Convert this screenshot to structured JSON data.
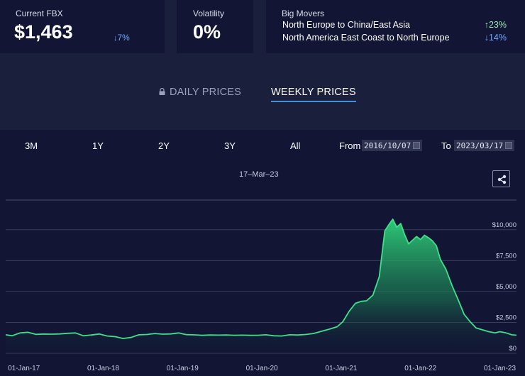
{
  "stats": {
    "fbx": {
      "label": "Current FBX",
      "value": "$1,463",
      "change": "7%",
      "direction": "down"
    },
    "volatility": {
      "label": "Volatility",
      "value": "0%"
    },
    "movers": {
      "label": "Big Movers",
      "items": [
        {
          "route": "North Europe to China/East Asia",
          "change": "23%",
          "direction": "up"
        },
        {
          "route": "North America East Coast to North Europe",
          "change": "14%",
          "direction": "down"
        }
      ]
    }
  },
  "tabs": {
    "daily": "DAILY PRICES",
    "weekly": "WEEKLY PRICES",
    "active": "weekly"
  },
  "controls": {
    "ranges": [
      "3M",
      "1Y",
      "2Y",
      "3Y",
      "All"
    ],
    "from_label": "From",
    "from_value": "2016/10/07",
    "to_label": "To",
    "to_value": "2023/03/17"
  },
  "date_readout": "17–Mar–23",
  "colors": {
    "background": "#1a1f3b",
    "panel": "#121634",
    "line": "#3fe08a",
    "accent": "#3f8fe0",
    "down": "#6fa8ff",
    "up": "#9fe3b4"
  },
  "chart_data": {
    "type": "area",
    "title": "",
    "xlabel": "",
    "ylabel": "",
    "ylim": [
      0,
      12400
    ],
    "x_range": [
      2016.77,
      2023.21
    ],
    "yticks": [
      {
        "value": 0,
        "label": "$0"
      },
      {
        "value": 2500,
        "label": "$2,500"
      },
      {
        "value": 5000,
        "label": "$5,000"
      },
      {
        "value": 7500,
        "label": "$7,500"
      },
      {
        "value": 10000,
        "label": "$10,000"
      }
    ],
    "xticks": [
      {
        "value": 2017.0,
        "label": "01-Jan-17"
      },
      {
        "value": 2018.0,
        "label": "01-Jan-18"
      },
      {
        "value": 2019.0,
        "label": "01-Jan-19"
      },
      {
        "value": 2020.0,
        "label": "01-Jan-20"
      },
      {
        "value": 2021.0,
        "label": "01-Jan-21"
      },
      {
        "value": 2022.0,
        "label": "01-Jan-22"
      },
      {
        "value": 2023.0,
        "label": "01-Jan-23"
      }
    ],
    "series": [
      {
        "name": "FBX",
        "x": [
          2016.77,
          2016.85,
          2016.95,
          2017.05,
          2017.15,
          2017.25,
          2017.35,
          2017.45,
          2017.55,
          2017.65,
          2017.75,
          2017.85,
          2017.95,
          2018.05,
          2018.15,
          2018.25,
          2018.35,
          2018.45,
          2018.55,
          2018.65,
          2018.75,
          2018.85,
          2018.95,
          2019.05,
          2019.15,
          2019.25,
          2019.35,
          2019.45,
          2019.55,
          2019.65,
          2019.75,
          2019.85,
          2019.95,
          2020.05,
          2020.15,
          2020.25,
          2020.35,
          2020.45,
          2020.55,
          2020.65,
          2020.75,
          2020.85,
          2020.95,
          2021.02,
          2021.1,
          2021.18,
          2021.25,
          2021.32,
          2021.4,
          2021.48,
          2021.55,
          2021.6,
          2021.65,
          2021.7,
          2021.75,
          2021.8,
          2021.85,
          2021.9,
          2021.95,
          2022.0,
          2022.05,
          2022.1,
          2022.15,
          2022.2,
          2022.25,
          2022.32,
          2022.4,
          2022.48,
          2022.55,
          2022.62,
          2022.7,
          2022.78,
          2022.86,
          2022.94,
          2023.0,
          2023.08,
          2023.15,
          2023.21
        ],
        "y": [
          1500,
          1420,
          1650,
          1700,
          1530,
          1560,
          1550,
          1570,
          1620,
          1650,
          1420,
          1480,
          1560,
          1400,
          1350,
          1200,
          1280,
          1500,
          1520,
          1600,
          1550,
          1570,
          1650,
          1510,
          1490,
          1450,
          1480,
          1470,
          1480,
          1460,
          1470,
          1450,
          1460,
          1500,
          1420,
          1400,
          1500,
          1480,
          1520,
          1600,
          1780,
          1950,
          2150,
          2550,
          3400,
          4050,
          4200,
          4250,
          4700,
          6200,
          9900,
          10400,
          10850,
          10200,
          10500,
          9600,
          8850,
          9150,
          9450,
          9200,
          9550,
          9350,
          9100,
          8700,
          7600,
          6800,
          5450,
          4250,
          3150,
          2600,
          2050,
          1900,
          1750,
          1650,
          1750,
          1650,
          1500,
          1463
        ]
      }
    ]
  }
}
